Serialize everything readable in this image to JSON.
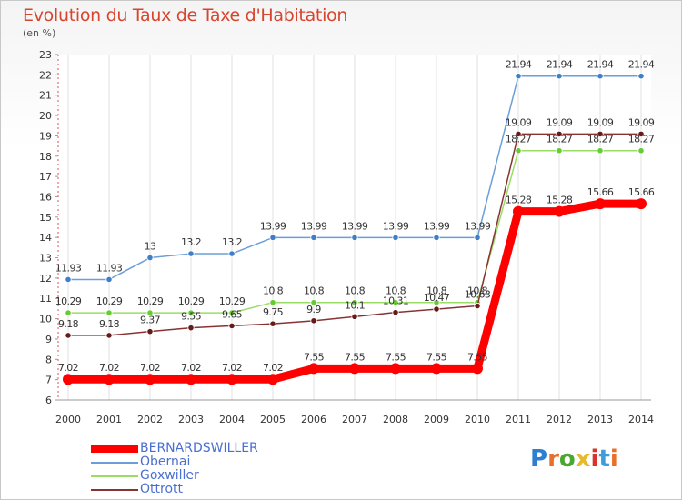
{
  "title": "Evolution du Taux de Taxe d'Habitation",
  "unit": "(en %)",
  "logo": {
    "text": "Proxiti",
    "colors": [
      "#2e7fd0",
      "#e8702a",
      "#4aa832",
      "#e8b92a",
      "#d8332e",
      "#3e9cd8",
      "#e8702a"
    ]
  },
  "chart_data": {
    "type": "line",
    "x": [
      2000,
      2001,
      2002,
      2003,
      2004,
      2005,
      2006,
      2007,
      2008,
      2009,
      2010,
      2011,
      2012,
      2013,
      2014
    ],
    "ylim": [
      6,
      23
    ],
    "yticks": [
      6,
      7,
      8,
      9,
      10,
      11,
      12,
      13,
      14,
      15,
      16,
      17,
      18,
      19,
      20,
      21,
      22,
      23
    ],
    "grid": "vertical",
    "legend_position": "bottom-left",
    "series": [
      {
        "name": "BERNARDSWILLER",
        "color": "#ff0000",
        "style": "thick",
        "values": [
          7.02,
          7.02,
          7.02,
          7.02,
          7.02,
          7.02,
          7.55,
          7.55,
          7.55,
          7.55,
          7.55,
          15.28,
          15.28,
          15.66,
          15.66
        ],
        "labels": [
          "7.02",
          "7.02",
          "7.02",
          "7.02",
          "7.02",
          "7.02",
          "7.55",
          "7.55",
          "7.55",
          "7.55",
          "7.55",
          "15.28",
          "15.28",
          "15.66",
          "15.66"
        ]
      },
      {
        "name": "Obernai",
        "color": "#6b9ed8",
        "dot": "#3e7fc8",
        "style": "thin",
        "values": [
          11.93,
          11.93,
          13,
          13.2,
          13.2,
          13.99,
          13.99,
          13.99,
          13.99,
          13.99,
          13.99,
          21.94,
          21.94,
          21.94,
          21.94
        ],
        "labels": [
          "11.93",
          "11.93",
          "13",
          "13.2",
          "13.2",
          "13.99",
          "13.99",
          "13.99",
          "13.99",
          "13.99",
          "13.99",
          "21.94",
          "21.94",
          "21.94",
          "21.94"
        ]
      },
      {
        "name": "Goxwiller",
        "color": "#99dd66",
        "dot": "#66cc33",
        "style": "thin",
        "values": [
          10.29,
          10.29,
          10.29,
          10.29,
          10.29,
          10.8,
          10.8,
          10.8,
          10.8,
          10.8,
          10.8,
          18.27,
          18.27,
          18.27,
          18.27
        ],
        "labels": [
          "10.29",
          "10.29",
          "10.29",
          "10.29",
          "10.29",
          "10.8",
          "10.8",
          "10.8",
          "10.8",
          "10.8",
          "10.8",
          "18.27",
          "18.27",
          "18.27",
          "18.27"
        ]
      },
      {
        "name": "Ottrott",
        "color": "#883333",
        "dot": "#661a1a",
        "style": "thin",
        "values": [
          9.18,
          9.18,
          9.37,
          9.55,
          9.65,
          9.75,
          9.9,
          10.1,
          10.31,
          10.47,
          10.63,
          19.09,
          19.09,
          19.09,
          19.09
        ],
        "labels": [
          "9.18",
          "9.18",
          "9.37",
          "9.55",
          "9.65",
          "9.75",
          "9.9",
          "10.1",
          "10.31",
          "10.47",
          "10.63",
          "19.09",
          "19.09",
          "19.09",
          "19.09"
        ]
      }
    ]
  }
}
